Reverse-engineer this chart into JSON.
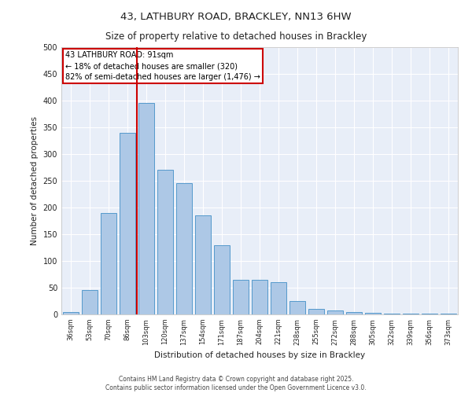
{
  "title1": "43, LATHBURY ROAD, BRACKLEY, NN13 6HW",
  "title2": "Size of property relative to detached houses in Brackley",
  "xlabel": "Distribution of detached houses by size in Brackley",
  "ylabel": "Number of detached properties",
  "categories": [
    "36sqm",
    "53sqm",
    "70sqm",
    "86sqm",
    "103sqm",
    "120sqm",
    "137sqm",
    "154sqm",
    "171sqm",
    "187sqm",
    "204sqm",
    "221sqm",
    "238sqm",
    "255sqm",
    "272sqm",
    "288sqm",
    "305sqm",
    "322sqm",
    "339sqm",
    "356sqm",
    "373sqm"
  ],
  "values": [
    5,
    45,
    190,
    340,
    395,
    270,
    245,
    185,
    130,
    65,
    65,
    60,
    25,
    10,
    7,
    5,
    3,
    2,
    1,
    1,
    2
  ],
  "bar_color": "#adc8e6",
  "bar_edgecolor": "#5599cc",
  "property_line_x": 3.5,
  "annotation_title": "43 LATHBURY ROAD: 91sqm",
  "annotation_line2": "← 18% of detached houses are smaller (320)",
  "annotation_line3": "82% of semi-detached houses are larger (1,476) →",
  "annotation_box_color": "#cc0000",
  "background_color": "#e8eef8",
  "grid_color": "#ffffff",
  "footer": "Contains HM Land Registry data © Crown copyright and database right 2025.\nContains public sector information licensed under the Open Government Licence v3.0.",
  "ylim": [
    0,
    500
  ],
  "yticks": [
    0,
    50,
    100,
    150,
    200,
    250,
    300,
    350,
    400,
    450,
    500
  ]
}
